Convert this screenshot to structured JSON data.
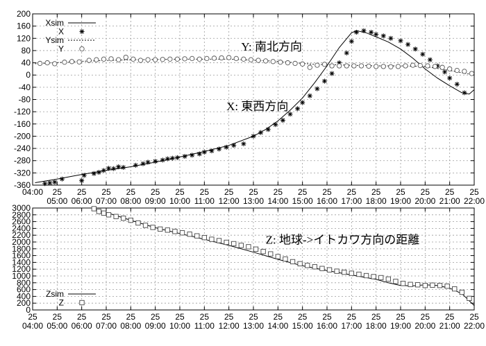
{
  "chart_data": [
    {
      "type": "line",
      "xlim": [
        4,
        22
      ],
      "ylim": [
        -360,
        200
      ],
      "yticks": [
        -360,
        -320,
        -280,
        -240,
        -200,
        -160,
        -120,
        -80,
        -40,
        0,
        40,
        80,
        120,
        160,
        200
      ],
      "xtick_labels_top": [
        "",
        "25",
        "25",
        "25",
        "25",
        "25",
        "25",
        "25",
        "25",
        "25",
        "25",
        "25",
        "25",
        "25",
        "25",
        "25",
        "25",
        "25",
        "25"
      ],
      "xtick_labels_bottom": [
        "04:00",
        "05:00",
        "06:00",
        "07:00",
        "08:00",
        "09:00",
        "10:00",
        "11:00",
        "12:00",
        "13:00",
        "14:00",
        "15:00",
        "16:00",
        "17:00",
        "18:00",
        "19:00",
        "20:00",
        "21:00",
        "22:00"
      ],
      "legend_position": "top-left",
      "grid": true,
      "annotations": [
        {
          "text": "Y:  南北方向",
          "x": 12.5,
          "y": 80
        },
        {
          "text": "X:  東西方向",
          "x": 11.9,
          "y": -115
        }
      ],
      "series": [
        {
          "name": "Xsim",
          "style": "solid-line",
          "x": [
            4.1,
            5,
            6,
            7,
            8,
            9,
            10,
            11,
            12,
            13,
            13.5,
            14,
            14.5,
            15,
            15.5,
            16,
            16.5,
            17,
            17.2,
            17.6,
            18,
            18.5,
            19,
            19.5,
            20,
            20.5,
            21,
            21.5,
            21.8,
            22
          ],
          "y": [
            -352,
            -340,
            -325,
            -312,
            -300,
            -285,
            -268,
            -250,
            -230,
            -200,
            -178,
            -150,
            -115,
            -75,
            -25,
            30,
            90,
            138,
            145,
            138,
            125,
            108,
            85,
            55,
            20,
            -10,
            -35,
            -58,
            -62,
            -48
          ]
        },
        {
          "name": "X",
          "style": "star-marker",
          "x": [
            4.5,
            4.7,
            4.9,
            5.2,
            6.0,
            6.1,
            6.5,
            6.7,
            6.9,
            7.1,
            7.3,
            7.5,
            7.7,
            8.2,
            8.5,
            8.7,
            9.0,
            9.3,
            9.5,
            9.7,
            9.9,
            10.2,
            10.5,
            10.8,
            11.0,
            11.3,
            11.6,
            11.9,
            12.2,
            12.6,
            13.0,
            13.3,
            13.6,
            13.9,
            14.2,
            14.5,
            14.8,
            15.0,
            15.3,
            15.6,
            15.9,
            16.2,
            16.5,
            16.8,
            17.0,
            17.2,
            17.5,
            17.8,
            18.0,
            18.3,
            18.6,
            19.0,
            19.3,
            19.6,
            19.9,
            20.2,
            20.5,
            20.8,
            21.0,
            21.3,
            21.6
          ],
          "y": [
            -355,
            -353,
            -350,
            -340,
            -345,
            -328,
            -322,
            -318,
            -312,
            -305,
            -306,
            -300,
            -302,
            -295,
            -290,
            -285,
            -282,
            -278,
            -274,
            -272,
            -270,
            -266,
            -262,
            -258,
            -252,
            -248,
            -242,
            -236,
            -230,
            -225,
            -200,
            -188,
            -178,
            -162,
            -148,
            -128,
            -110,
            -90,
            -68,
            -45,
            -20,
            5,
            40,
            72,
            110,
            140,
            145,
            140,
            133,
            128,
            120,
            112,
            100,
            85,
            68,
            50,
            30,
            10,
            -10,
            -30,
            -58
          ]
        },
        {
          "name": "Ysim",
          "style": "dashed-line",
          "x": [
            4.1,
            6,
            8,
            10,
            12,
            14,
            15.5,
            17,
            18,
            19,
            20,
            21,
            22
          ],
          "y": [
            37,
            45,
            50,
            52,
            52,
            45,
            35,
            32,
            30,
            30,
            28,
            15,
            0
          ]
        },
        {
          "name": "Y",
          "style": "circle-marker",
          "x": [
            4.3,
            4.6,
            4.9,
            5.3,
            5.6,
            5.9,
            6.3,
            6.6,
            6.9,
            7.2,
            7.5,
            7.8,
            8.1,
            8.4,
            8.7,
            9.0,
            9.3,
            9.6,
            9.9,
            10.2,
            10.5,
            10.8,
            11.1,
            11.4,
            11.7,
            12.0,
            12.3,
            12.6,
            12.9,
            13.2,
            13.5,
            13.8,
            14.1,
            14.4,
            14.7,
            15.0,
            15.3,
            15.6,
            15.9,
            16.2,
            16.5,
            16.8,
            17.1,
            17.4,
            17.7,
            18.0,
            18.3,
            18.6,
            18.9,
            19.2,
            19.5,
            19.8,
            20.1,
            20.4,
            20.7,
            21.0,
            21.3,
            21.6,
            21.9
          ],
          "y": [
            38,
            40,
            37,
            42,
            44,
            43,
            48,
            50,
            52,
            53,
            50,
            58,
            52,
            48,
            50,
            50,
            51,
            52,
            52,
            53,
            54,
            52,
            54,
            55,
            56,
            57,
            54,
            52,
            50,
            48,
            46,
            44,
            42,
            40,
            38,
            36,
            25,
            32,
            35,
            30,
            30,
            30,
            30,
            30,
            29,
            28,
            28,
            27,
            28,
            30,
            32,
            31,
            30,
            28,
            25,
            20,
            15,
            12,
            5
          ]
        }
      ]
    },
    {
      "type": "line",
      "xlim": [
        4,
        22
      ],
      "ylim": [
        0,
        3000
      ],
      "yticks": [
        0,
        200,
        400,
        600,
        800,
        1000,
        1200,
        1400,
        1600,
        1800,
        2000,
        2200,
        2400,
        2600,
        2800,
        3000
      ],
      "xtick_labels_top": [
        "25",
        "25",
        "25",
        "25",
        "25",
        "25",
        "25",
        "25",
        "25",
        "25",
        "25",
        "25",
        "25",
        "25",
        "25",
        "25",
        "25",
        "25",
        "25"
      ],
      "xtick_labels_bottom": [
        "04:00",
        "05:00",
        "06:00",
        "07:00",
        "08:00",
        "09:00",
        "10:00",
        "11:00",
        "12:00",
        "13:00",
        "14:00",
        "15:00",
        "16:00",
        "17:00",
        "18:00",
        "19:00",
        "20:00",
        "21:00",
        "22:00"
      ],
      "legend_position": "bottom-left",
      "grid": true,
      "annotations": [
        {
          "text": "Z:  地球->イトカワ方向の距離",
          "x": 13.5,
          "y": 1950
        }
      ],
      "series": [
        {
          "name": "Zsim",
          "style": "solid-line",
          "x": [
            6.4,
            7,
            8,
            9,
            10,
            11,
            12,
            13,
            14,
            15,
            16,
            17,
            18,
            18.5,
            19,
            19.5,
            20,
            20.5,
            21,
            21.5,
            22
          ],
          "y": [
            3000,
            2870,
            2640,
            2420,
            2250,
            2080,
            1900,
            1700,
            1490,
            1300,
            1160,
            1030,
            900,
            800,
            720,
            710,
            740,
            720,
            640,
            480,
            130
          ]
        },
        {
          "name": "Z",
          "style": "square-marker",
          "x": [
            6.5,
            6.7,
            6.9,
            7.1,
            7.4,
            7.7,
            8.0,
            8.3,
            8.6,
            8.9,
            9.2,
            9.5,
            9.8,
            10.1,
            10.4,
            10.7,
            11.0,
            11.3,
            11.6,
            11.9,
            12.2,
            12.5,
            12.8,
            13.1,
            13.4,
            13.7,
            14.0,
            14.3,
            14.6,
            14.9,
            15.2,
            15.5,
            15.8,
            16.1,
            16.4,
            16.7,
            17.0,
            17.3,
            17.6,
            17.9,
            18.2,
            18.5,
            18.8,
            19.1,
            19.4,
            19.7,
            20.0,
            20.3,
            20.6,
            20.9,
            21.2,
            21.5,
            21.8
          ],
          "y": [
            2980,
            2900,
            2850,
            2800,
            2750,
            2700,
            2640,
            2560,
            2490,
            2430,
            2380,
            2350,
            2310,
            2270,
            2230,
            2180,
            2130,
            2080,
            2040,
            1990,
            1950,
            1900,
            1860,
            1790,
            1720,
            1650,
            1570,
            1500,
            1420,
            1360,
            1310,
            1270,
            1220,
            1180,
            1140,
            1110,
            1080,
            1050,
            1010,
            980,
            950,
            910,
            840,
            780,
            750,
            740,
            720,
            730,
            720,
            700,
            620,
            520,
            340
          ]
        }
      ]
    }
  ]
}
